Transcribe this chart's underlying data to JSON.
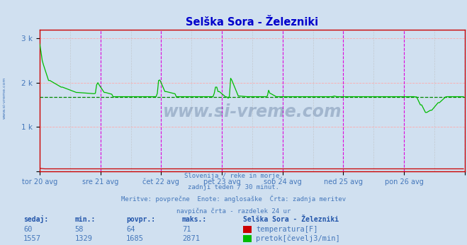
{
  "title": "Selška Sora - Železniki",
  "background_color": "#d0e0f0",
  "plot_bg_color": "#d0e0f0",
  "x_labels": [
    "tor 20 avg",
    "sre 21 avg",
    "čet 22 avg",
    "pet 23 avg",
    "sob 24 avg",
    "ned 25 avg",
    "pon 26 avg"
  ],
  "y_tick_labels": [
    "",
    "1 k",
    "2 k",
    "3 k"
  ],
  "ylim": [
    0,
    3200
  ],
  "xlim": [
    0,
    336
  ],
  "grid_color": "#ffaaaa",
  "vline_color_major": "#dd00dd",
  "vline_color_minor": "#bbbbbb",
  "avg_line_color": "#008800",
  "avg_line_value": 1685,
  "temp_color": "#cc0000",
  "flow_color": "#00bb00",
  "temp_avg": 64,
  "temp_min": 58,
  "temp_max": 71,
  "temp_current": 60,
  "flow_avg": 1685,
  "flow_min": 1329,
  "flow_max": 2871,
  "flow_current": 1557,
  "subtitle_lines": [
    "Slovenija / reke in morje.",
    "zadnji teden / 30 minut.",
    "Meritve: povprečne  Enote: anglosaške  Črta: zadnja meritev",
    "navpična črta - razdelek 24 ur"
  ],
  "legend_title": "Selška Sora - Železniki",
  "legend_temp_label": "temperatura[F]",
  "legend_flow_label": "pretok[čevelj3/min]",
  "text_color": "#4477bb",
  "label_bold_color": "#2255aa",
  "watermark": "www.si-vreme.com",
  "spine_color": "#cc0000",
  "title_color": "#0000cc"
}
